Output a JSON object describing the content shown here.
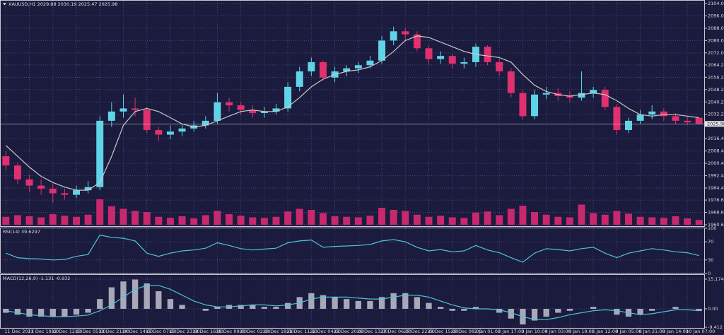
{
  "chart_data": [
    {
      "type": "candlestick",
      "title": "XAUUSD,H1  2029.88 2030.19 2025.47 2025.98",
      "open": [
        2005,
        1999,
        1990,
        1986,
        1984,
        1981,
        1980,
        1983,
        1985,
        2028,
        2034,
        2036,
        2035,
        2022,
        2019,
        2021,
        2023,
        2025,
        2028,
        2040,
        2038,
        2035,
        2033,
        2034,
        2036,
        2050,
        2060,
        2066,
        2056,
        2060,
        2062,
        2064,
        2067,
        2080,
        2086,
        2084,
        2075,
        2068,
        2070,
        2065,
        2066,
        2076,
        2066,
        2060,
        2046,
        2031,
        2045,
        2046,
        2044,
        2043,
        2046,
        2048,
        2037,
        2022,
        2028,
        2032,
        2034,
        2031,
        2028,
        2029.88
      ],
      "high": [
        2008,
        2001,
        1993,
        1990,
        1987,
        1984,
        1986,
        1989,
        2031,
        2040,
        2045,
        2043,
        2037,
        2024,
        2025,
        2026,
        2028,
        2031,
        2046,
        2043,
        2040,
        2038,
        2037,
        2039,
        2053,
        2063,
        2069,
        2067,
        2063,
        2064,
        2066,
        2070,
        2083,
        2089,
        2088,
        2086,
        2077,
        2073,
        2071,
        2069,
        2078,
        2077,
        2068,
        2062,
        2048,
        2048,
        2050,
        2049,
        2047,
        2060,
        2050,
        2050,
        2039,
        2030,
        2035,
        2038,
        2036,
        2033,
        2031,
        2030.19
      ],
      "low": [
        1996,
        1987,
        1982,
        1980,
        1975,
        1977,
        1978,
        1981,
        1983,
        2024,
        2030,
        2031,
        2020,
        2015,
        2016,
        2018,
        2021,
        2023,
        2026,
        2034,
        2032,
        2030,
        2030,
        2032,
        2034,
        2047,
        2057,
        2054,
        2053,
        2057,
        2059,
        2062,
        2065,
        2077,
        2080,
        2073,
        2065,
        2065,
        2062,
        2062,
        2063,
        2064,
        2057,
        2043,
        2029,
        2029,
        2042,
        2041,
        2040,
        2041,
        2043,
        2035,
        2019,
        2020,
        2026,
        2029,
        2028,
        2026,
        2025,
        2025.47
      ],
      "close": [
        1999,
        1990,
        1986,
        1984,
        1981,
        1980,
        1983,
        1985,
        2028,
        2034,
        2036,
        2035,
        2022,
        2019,
        2021,
        2023,
        2025,
        2028,
        2040,
        2038,
        2035,
        2033,
        2034,
        2036,
        2050,
        2060,
        2066,
        2056,
        2060,
        2062,
        2064,
        2067,
        2080,
        2086,
        2084,
        2075,
        2068,
        2070,
        2065,
        2066,
        2076,
        2066,
        2060,
        2046,
        2031,
        2045,
        2046,
        2044,
        2043,
        2046,
        2048,
        2037,
        2022,
        2028,
        2032,
        2034,
        2031,
        2028,
        2027,
        2025.98
      ],
      "ma": [
        2012,
        2005,
        1998,
        1992,
        1988,
        1985,
        1983,
        1983,
        1988,
        2005,
        2025,
        2034,
        2036,
        2034,
        2030,
        2026,
        2024,
        2025,
        2028,
        2031,
        2034,
        2035,
        2034,
        2034,
        2037,
        2043,
        2050,
        2055,
        2058,
        2060,
        2061,
        2063,
        2067,
        2073,
        2080,
        2083,
        2082,
        2079,
        2076,
        2073,
        2071,
        2070,
        2069,
        2066,
        2058,
        2051,
        2047,
        2045,
        2044,
        2045,
        2046,
        2045,
        2041,
        2036,
        2032,
        2031,
        2032,
        2032,
        2031,
        2030
      ],
      "volume": [
        1500,
        1800,
        1600,
        1400,
        2000,
        1700,
        1500,
        1900,
        4800,
        3500,
        3000,
        2600,
        2400,
        1500,
        1300,
        1600,
        1200,
        1800,
        2600,
        2000,
        1700,
        1400,
        1300,
        1500,
        2500,
        3000,
        2800,
        2200,
        1600,
        1500,
        1400,
        1700,
        3200,
        2800,
        2600,
        1900,
        1500,
        1700,
        1400,
        1300,
        2300,
        2500,
        1800,
        3000,
        3600,
        2400,
        1900,
        1500,
        1400,
        3800,
        2200,
        1900,
        2600,
        2100,
        1500,
        1400,
        1300,
        1600,
        1200,
        900
      ],
      "up_color": "#5fd3e8",
      "down_color": "#e0306f",
      "ma_color": "#c8c8c8",
      "volume_color": "#c8286e",
      "last_price": 2025.98,
      "ylim": [
        1960.6,
        2104
      ],
      "yticks": [
        {
          "value": 2104,
          "label": "2104.00"
        },
        {
          "value": 2096,
          "label": "2096.00"
        },
        {
          "value": 2088,
          "label": "2088.00"
        },
        {
          "value": 2080,
          "label": "2080.00"
        },
        {
          "value": 2072,
          "label": "2072.00"
        },
        {
          "value": 2064.2,
          "label": "2064.20"
        },
        {
          "value": 2056.2,
          "label": "2056.20"
        },
        {
          "value": 2048.2,
          "label": "2048.20"
        },
        {
          "value": 2040.2,
          "label": "2040.20"
        },
        {
          "value": 2032.2,
          "label": "2032.20"
        },
        {
          "value": 2016.4,
          "label": "2016.40"
        },
        {
          "value": 2008.4,
          "label": "2008.40"
        },
        {
          "value": 2000.4,
          "label": "2000.40"
        },
        {
          "value": 1992.4,
          "label": "1992.40"
        },
        {
          "value": 1984.4,
          "label": "1984.40"
        },
        {
          "value": 1976.6,
          "label": "1976.60"
        },
        {
          "value": 1968.6,
          "label": "1968.60"
        },
        {
          "value": 1960.6,
          "label": "1960.60"
        }
      ],
      "xticks": [
        {
          "value": 0,
          "label": "11 Dec 2023"
        },
        {
          "value": 2,
          "label": "11 Dec 19:00"
        },
        {
          "value": 4,
          "label": "12 Dec 12:00"
        },
        {
          "value": 6,
          "label": "13 Dec 05:00"
        },
        {
          "value": 8,
          "label": "13 Dec 21:00"
        },
        {
          "value": 10,
          "label": "14 Dec 14:00"
        },
        {
          "value": 12,
          "label": "15 Dec 07:00"
        },
        {
          "value": 14,
          "label": "15 Dec 23:00"
        },
        {
          "value": 16,
          "label": "18 Dec 16:00"
        },
        {
          "value": 18,
          "label": "19 Dec 09:00"
        },
        {
          "value": 20,
          "label": "20 Dec 02:00"
        },
        {
          "value": 22,
          "label": "20 Dec 18:00"
        },
        {
          "value": 24,
          "label": "21 Dec 11:00"
        },
        {
          "value": 26,
          "label": "22 Dec 04:00"
        },
        {
          "value": 28,
          "label": "22 Dec 20:00"
        },
        {
          "value": 30,
          "label": "26 Dec 13:00"
        },
        {
          "value": 32,
          "label": "27 Dec 06:00"
        },
        {
          "value": 34,
          "label": "27 Dec 22:00"
        },
        {
          "value": 36,
          "label": "28 Dec 15:00"
        },
        {
          "value": 38,
          "label": "29 Dec 08:00"
        },
        {
          "value": 40,
          "label": "2 Jan 01:00"
        },
        {
          "value": 42,
          "label": "2 Jan 17:00"
        },
        {
          "value": 44,
          "label": "3 Jan 10:00"
        },
        {
          "value": 46,
          "label": "4 Jan 03:00"
        },
        {
          "value": 48,
          "label": "4 Jan 19:00"
        },
        {
          "value": 50,
          "label": "5 Jan 12:00"
        },
        {
          "value": 52,
          "label": "8 Jan 05:00"
        },
        {
          "value": 54,
          "label": "8 Jan 21:00"
        },
        {
          "value": 56,
          "label": "9 Jan 14:00"
        },
        {
          "value": 58,
          "label": "10 Jan 07:00"
        }
      ],
      "grid": true
    },
    {
      "type": "line",
      "title": "RSI(14) 39.6297",
      "color": "#4fc3d8",
      "values": [
        45,
        35,
        33,
        32,
        30,
        31,
        38,
        42,
        85,
        80,
        78,
        72,
        45,
        38,
        45,
        50,
        52,
        56,
        68,
        62,
        55,
        52,
        54,
        56,
        68,
        72,
        74,
        58,
        60,
        61,
        62,
        64,
        72,
        75,
        70,
        58,
        50,
        53,
        48,
        50,
        62,
        52,
        46,
        35,
        25,
        45,
        55,
        53,
        50,
        55,
        58,
        45,
        35,
        45,
        50,
        55,
        52,
        48,
        46,
        39.63
      ],
      "ylim": [
        0,
        100
      ],
      "yticks": [
        100,
        70,
        30,
        0
      ],
      "grid": true
    },
    {
      "type": "macd",
      "title": "MACD(12,26,9) -1.131 -0.932",
      "color": "#a8a8b8",
      "signal_color": "#4fc3d8",
      "values": [
        -2,
        -3,
        -4,
        -4,
        -4,
        -4,
        -3,
        -2,
        5,
        11,
        14,
        15,
        13,
        9,
        5,
        2,
        0,
        -1,
        1,
        2,
        2,
        2,
        1,
        1,
        3,
        6,
        8,
        7,
        6,
        5,
        4,
        4,
        6,
        8,
        8,
        6,
        3,
        1,
        -1,
        -1,
        1,
        0,
        -2,
        -5,
        -8,
        -6,
        -4,
        -2,
        -1,
        0,
        1,
        0,
        -3,
        -4,
        -3,
        -1,
        0,
        1,
        0,
        -1.131
      ],
      "signal": [
        -1,
        -2,
        -3,
        -3.5,
        -4,
        -4,
        -3.7,
        -3.2,
        -1,
        2,
        6,
        10,
        12,
        12,
        10,
        7,
        4,
        2,
        1,
        1,
        1.5,
        2,
        2,
        1.5,
        2,
        3,
        5,
        6,
        6,
        6,
        5.5,
        5,
        5,
        6,
        7,
        7,
        6,
        4,
        2,
        0.5,
        0,
        0,
        -0.5,
        -2,
        -4,
        -5.5,
        -5.5,
        -4.5,
        -3,
        -2,
        -1,
        -0.5,
        -1,
        -2,
        -3,
        -2.5,
        -1.5,
        -0.5,
        -0.5,
        -0.932
      ],
      "ylim": [
        -9.412,
        15.174
      ],
      "yticks": [
        15.174,
        {
          "value": 0,
          "label": "0.00"
        },
        -9.412
      ],
      "grid": true
    }
  ]
}
